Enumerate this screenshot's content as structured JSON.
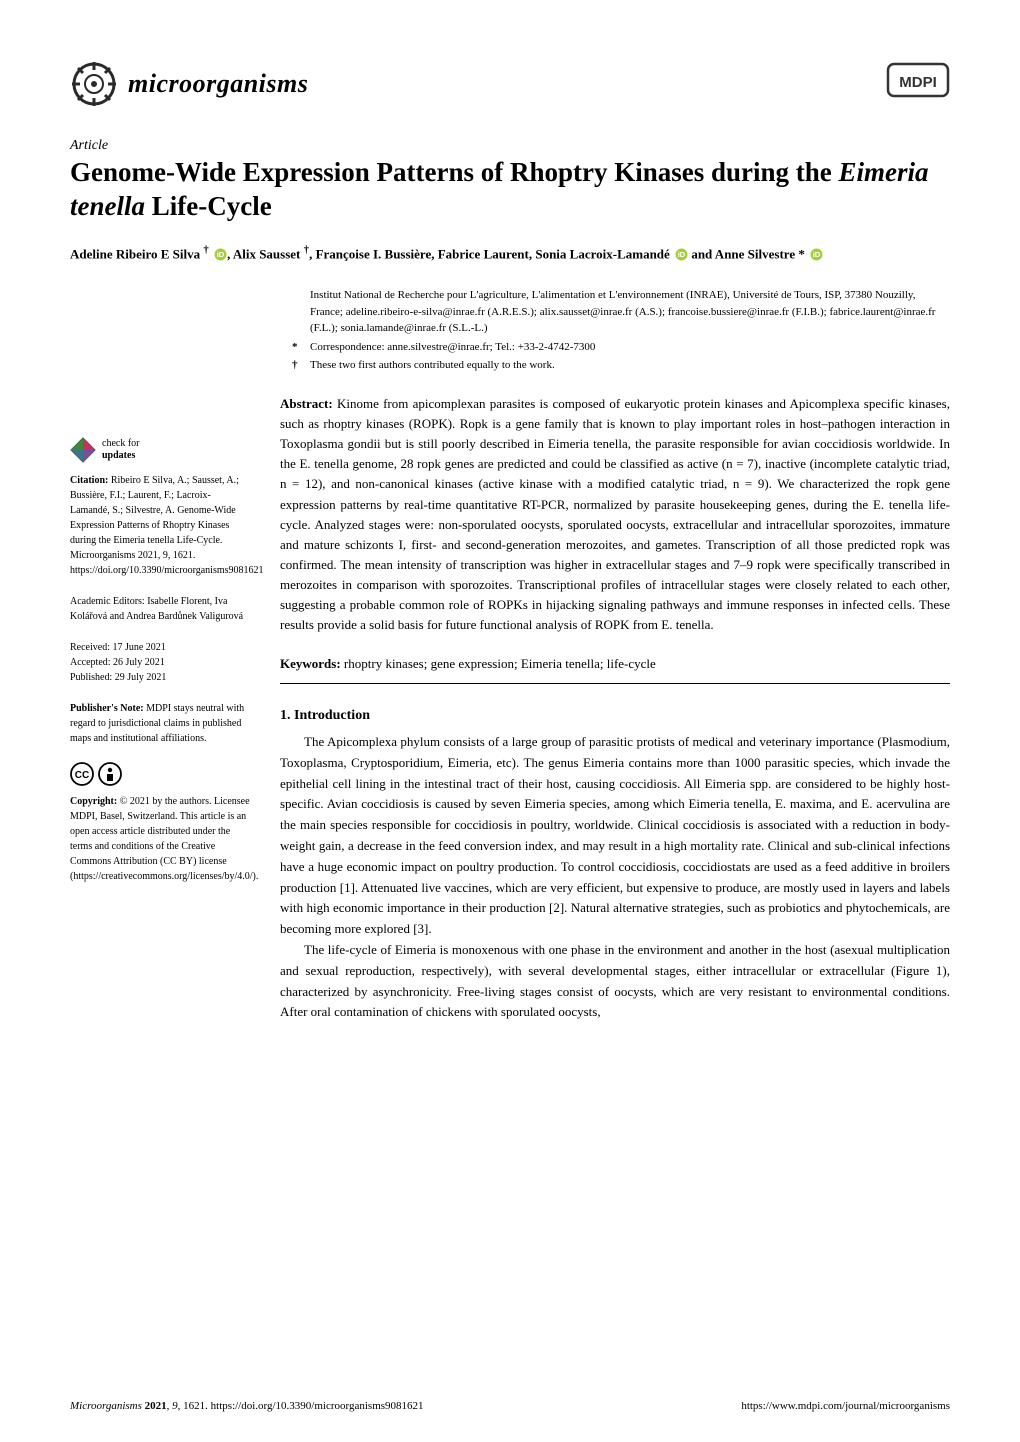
{
  "journal": {
    "name": "microorganisms",
    "logo_color": "#2a2a2a",
    "publisher_logo_text": "MDPI"
  },
  "article": {
    "type": "Article",
    "title_pre": "Genome-Wide Expression Patterns of Rhoptry Kinases during the ",
    "title_species": "Eimeria tenella",
    "title_post": " Life-Cycle",
    "authors_html": "Adeline Ribeiro E Silva <sup>†</sup> <svg class='orcid' viewBox='0 0 24 24'><circle cx='12' cy='12' r='11' fill='#A6CE39'/><text x='12' y='17' text-anchor='middle' font-size='14' fill='#fff' font-family='Arial'>iD</text></svg>, Alix Sausset <sup>†</sup>, Françoise I. Bussière, Fabrice Laurent, Sonia Lacroix-Lamandé <svg class='orcid' viewBox='0 0 24 24'><circle cx='12' cy='12' r='11' fill='#A6CE39'/><text x='12' y='17' text-anchor='middle' font-size='14' fill='#fff' font-family='Arial'>iD</text></svg> and Anne Silvestre * <svg class='orcid' viewBox='0 0 24 24'><circle cx='12' cy='12' r='11' fill='#A6CE39'/><text x='12' y='17' text-anchor='middle' font-size='14' fill='#fff' font-family='Arial'>iD</text></svg>"
  },
  "affiliation": {
    "text": "Institut National de Recherche pour L'agriculture, L'alimentation et L'environnement (INRAE), Université de Tours, ISP, 37380 Nouzilly, France; adeline.ribeiro-e-silva@inrae.fr (A.R.E.S.); alix.sausset@inrae.fr (A.S.); francoise.bussiere@inrae.fr (F.I.B.); fabrice.laurent@inrae.fr (F.L.); sonia.lamande@inrae.fr (S.L.-L.)",
    "correspondence_marker": "*",
    "correspondence": "Correspondence: anne.silvestre@inrae.fr; Tel.: +33-2-4742-7300",
    "contrib_marker": "†",
    "contrib": "These two first authors contributed equally to the work."
  },
  "abstract": {
    "label": "Abstract:",
    "text": " Kinome from apicomplexan parasites is composed of eukaryotic protein kinases and Apicomplexa specific kinases, such as rhoptry kinases (ROPK). Ropk is a gene family that is known to play important roles in host–pathogen interaction in Toxoplasma gondii but is still poorly described in Eimeria tenella, the parasite responsible for avian coccidiosis worldwide. In the E. tenella genome, 28 ropk genes are predicted and could be classified as active (n = 7), inactive (incomplete catalytic triad, n = 12), and non-canonical kinases (active kinase with a modified catalytic triad, n = 9). We characterized the ropk gene expression patterns by real-time quantitative RT-PCR, normalized by parasite housekeeping genes, during the E. tenella life-cycle. Analyzed stages were: non-sporulated oocysts, sporulated oocysts, extracellular and intracellular sporozoites, immature and mature schizonts I, first- and second-generation merozoites, and gametes. Transcription of all those predicted ropk was confirmed. The mean intensity of transcription was higher in extracellular stages and 7–9 ropk were specifically transcribed in merozoites in comparison with sporozoites. Transcriptional profiles of intracellular stages were closely related to each other, suggesting a probable common role of ROPKs in hijacking signaling pathways and immune responses in infected cells. These results provide a solid basis for future functional analysis of ROPK from E. tenella."
  },
  "keywords": {
    "label": "Keywords:",
    "text": " rhoptry kinases; gene expression; Eimeria tenella; life-cycle"
  },
  "section1": {
    "heading": "1. Introduction",
    "para1": "The Apicomplexa phylum consists of a large group of parasitic protists of medical and veterinary importance (Plasmodium, Toxoplasma, Cryptosporidium, Eimeria, etc). The genus Eimeria contains more than 1000 parasitic species, which invade the epithelial cell lining in the intestinal tract of their host, causing coccidiosis. All Eimeria spp. are considered to be highly host-specific. Avian coccidiosis is caused by seven Eimeria species, among which Eimeria tenella, E. maxima, and E. acervulina are the main species responsible for coccidiosis in poultry, worldwide. Clinical coccidiosis is associated with a reduction in body-weight gain, a decrease in the feed conversion index, and may result in a high mortality rate. Clinical and sub-clinical infections have a huge economic impact on poultry production. To control coccidiosis, coccidiostats are used as a feed additive in broilers production [1]. Attenuated live vaccines, which are very efficient, but expensive to produce, are mostly used in layers and labels with high economic importance in their production [2]. Natural alternative strategies, such as probiotics and phytochemicals, are becoming more explored [3].",
    "para2": "The life-cycle of Eimeria is monoxenous with one phase in the environment and another in the host (asexual multiplication and sexual reproduction, respectively), with several developmental stages, either intracellular or extracellular (Figure 1), characterized by asynchronicity. Free-living stages consist of oocysts, which are very resistant to environmental conditions. After oral contamination of chickens with sporulated oocysts,"
  },
  "sidebar": {
    "check_updates": "check for updates",
    "citation_label": "Citation:",
    "citation": " Ribeiro E Silva, A.; Sausset, A.; Bussière, F.I.; Laurent, F.; Lacroix-Lamandé, S.; Silvestre, A. Genome-Wide Expression Patterns of Rhoptry Kinases during the Eimeria tenella Life-Cycle. Microorganisms 2021, 9, 1621. https://doi.org/10.3390/microorganisms9081621",
    "editors_label": "Academic Editors:",
    "editors": " Isabelle Florent, Iva Kolářová and Andrea Bardůnek Valigurová",
    "received": "Received: 17 June 2021",
    "accepted": "Accepted: 26 July 2021",
    "published": "Published: 29 July 2021",
    "pubnote_label": "Publisher's Note:",
    "pubnote": " MDPI stays neutral with regard to jurisdictional claims in published maps and institutional affiliations.",
    "copyright_label": "Copyright:",
    "copyright": " © 2021 by the authors. Licensee MDPI, Basel, Switzerland. This article is an open access article distributed under the terms and conditions of the Creative Commons Attribution (CC BY) license (https://creativecommons.org/licenses/by/4.0/)."
  },
  "footer": {
    "left": "Microorganisms 2021, 9, 1621. https://doi.org/10.3390/microorganisms9081621",
    "right": "https://www.mdpi.com/journal/microorganisms"
  },
  "colors": {
    "text": "#000000",
    "link": "#0b57d0",
    "orcid": "#A6CE39",
    "cc_border": "#000000"
  }
}
